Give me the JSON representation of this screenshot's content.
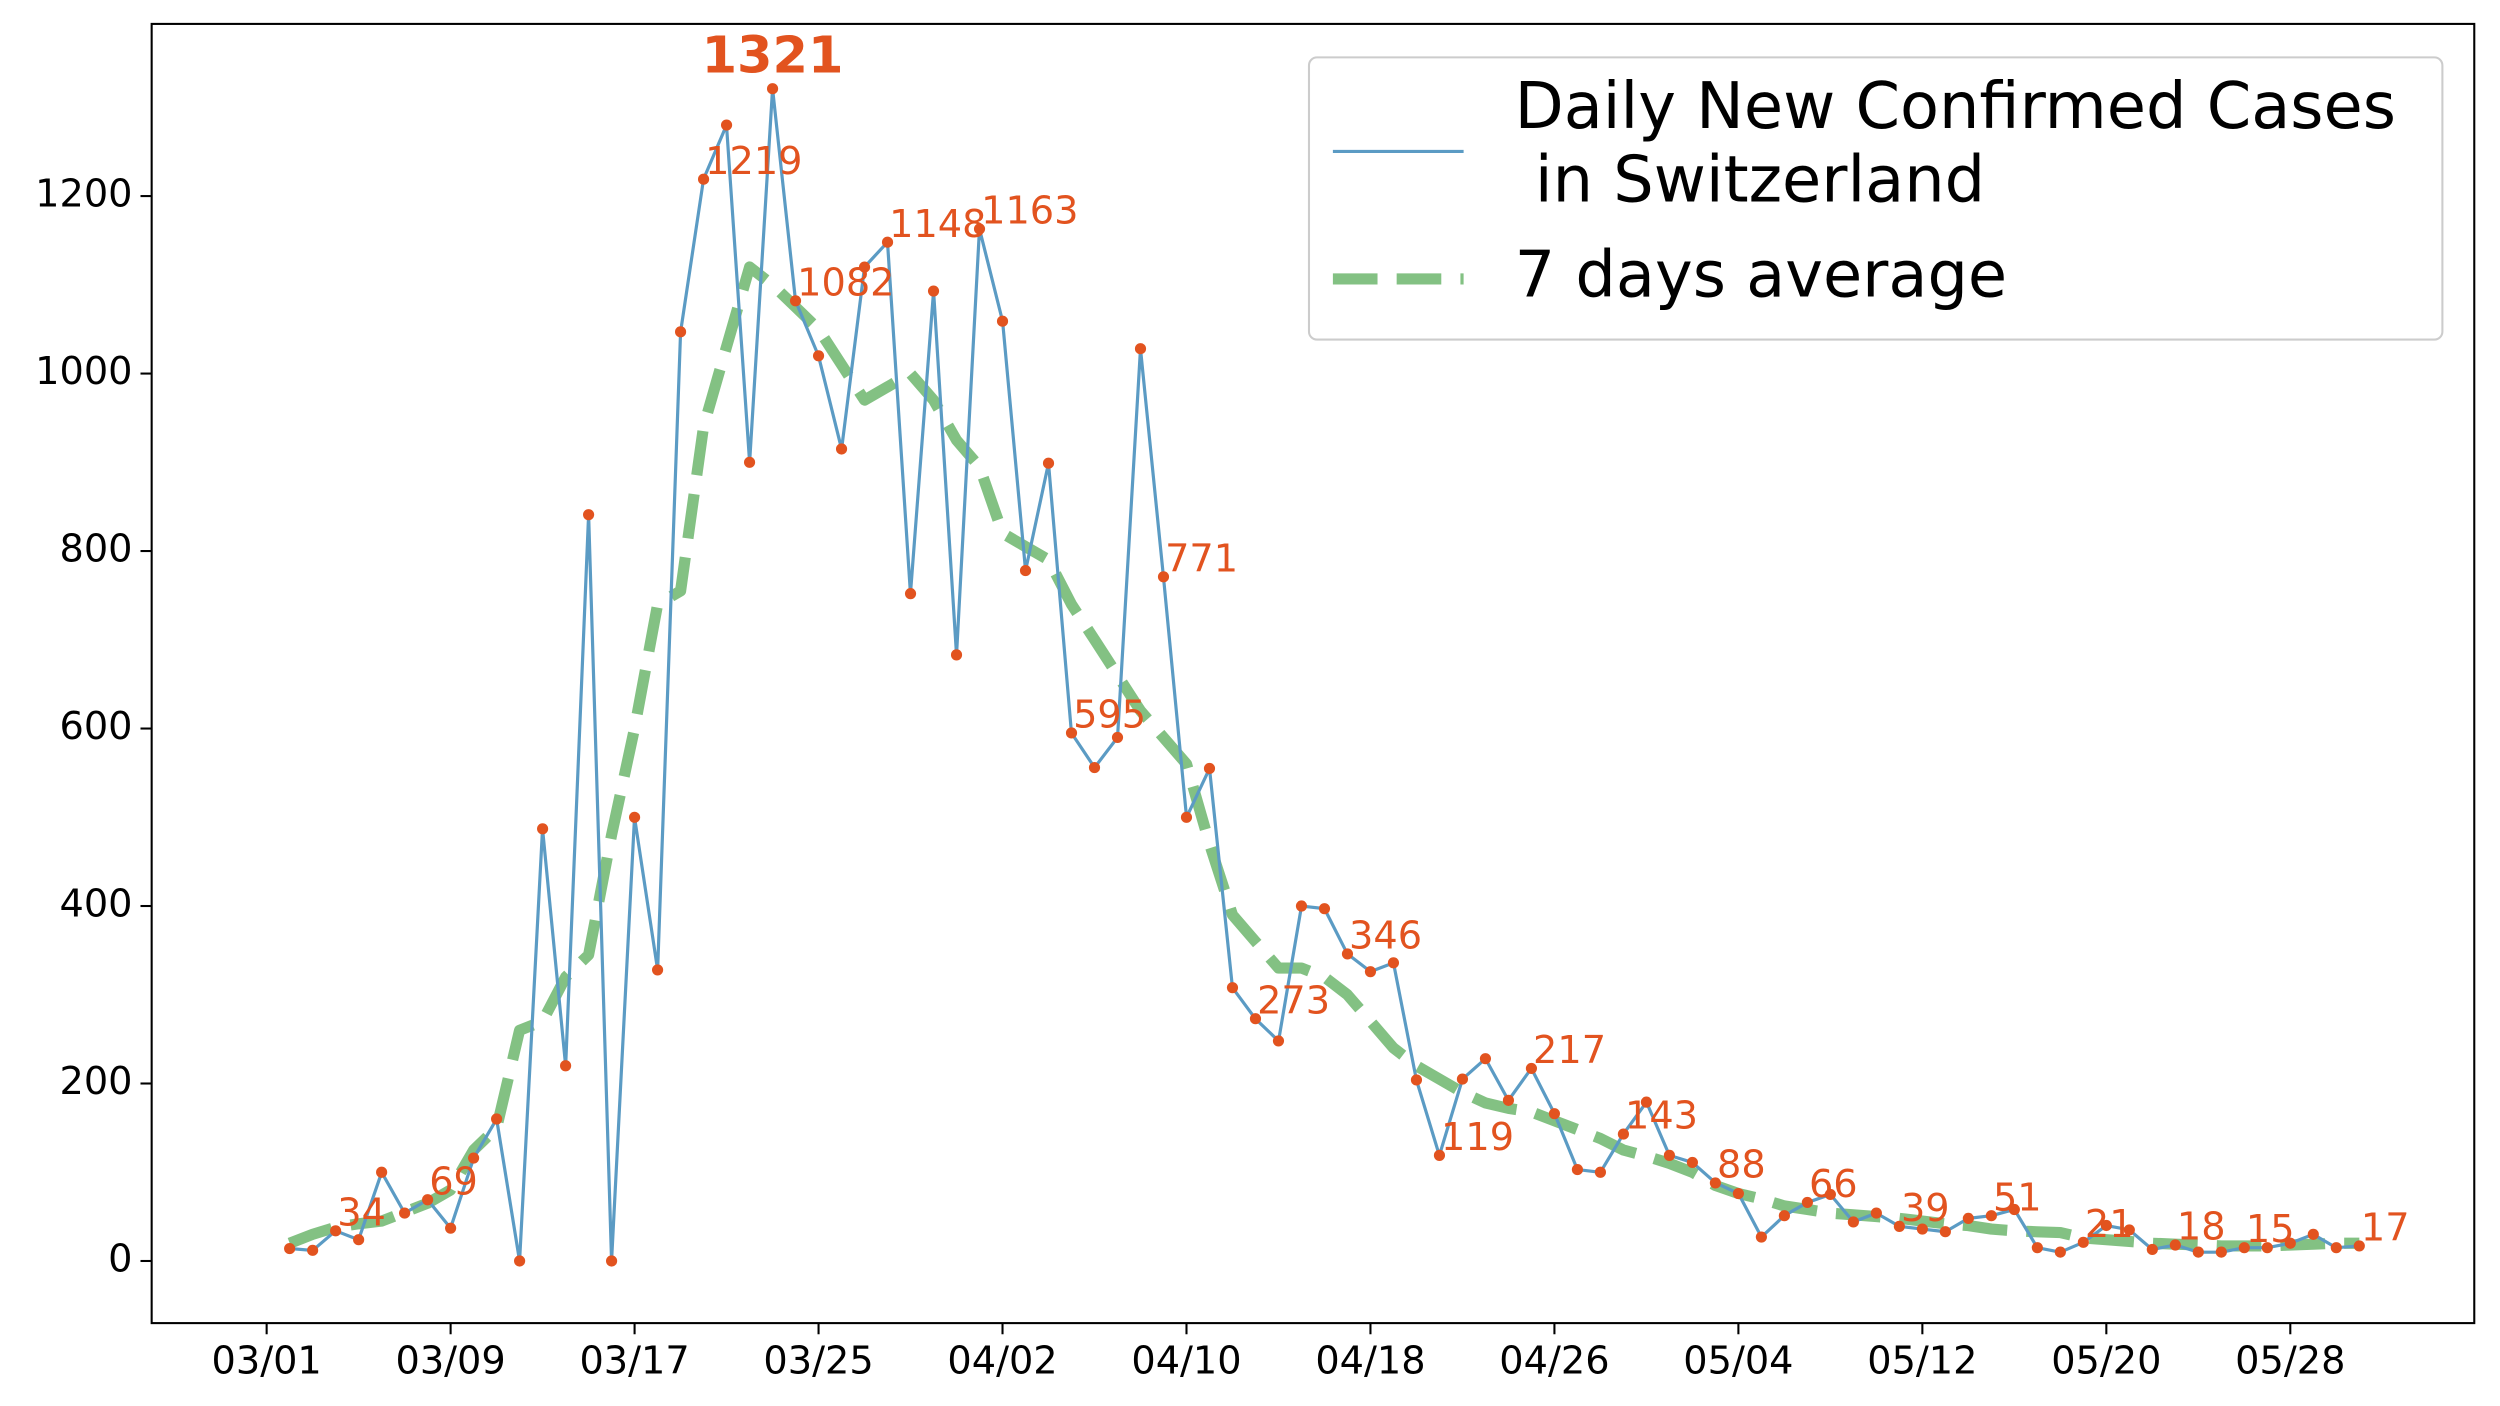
{
  "chart_data": {
    "type": "line",
    "x": [
      "03/02",
      "03/03",
      "03/04",
      "03/05",
      "03/06",
      "03/07",
      "03/08",
      "03/09",
      "03/10",
      "03/11",
      "03/12",
      "03/13",
      "03/14",
      "03/15",
      "03/16",
      "03/17",
      "03/18",
      "03/19",
      "03/20",
      "03/21",
      "03/22",
      "03/23",
      "03/24",
      "03/25",
      "03/26",
      "03/27",
      "03/28",
      "03/29",
      "03/30",
      "03/31",
      "04/01",
      "04/02",
      "04/03",
      "04/04",
      "04/05",
      "04/06",
      "04/07",
      "04/08",
      "04/09",
      "04/10",
      "04/11",
      "04/12",
      "04/13",
      "04/14",
      "04/15",
      "04/16",
      "04/17",
      "04/18",
      "04/19",
      "04/20",
      "04/21",
      "04/22",
      "04/23",
      "04/24",
      "04/25",
      "04/26",
      "04/27",
      "04/28",
      "04/29",
      "04/30",
      "05/01",
      "05/02",
      "05/03",
      "05/04",
      "05/05",
      "05/06",
      "05/07",
      "05/08",
      "05/09",
      "05/10",
      "05/11",
      "05/12",
      "05/13",
      "05/14",
      "05/15",
      "05/16",
      "05/17",
      "05/18",
      "05/19",
      "05/20",
      "05/21",
      "05/22",
      "05/23",
      "05/24",
      "05/25",
      "05/26",
      "05/27",
      "05/28",
      "05/29",
      "05/30",
      "05/31"
    ],
    "series": [
      {
        "name": "Daily New Confirmed Cases\n in Switzerland",
        "color": "#5b9bc4",
        "marker_color": "#e2531f",
        "line_style": "solid",
        "values": [
          14,
          12,
          34,
          24,
          100,
          54,
          69,
          37,
          116,
          160,
          0,
          487,
          220,
          841,
          0,
          500,
          328,
          1047,
          1219,
          1280,
          900,
          1321,
          1082,
          1020,
          915,
          1120,
          1148,
          752,
          1093,
          683,
          1163,
          1059,
          778,
          899,
          595,
          556,
          590,
          1028,
          771,
          500,
          555,
          308,
          273,
          248,
          400,
          397,
          346,
          326,
          336,
          204,
          119,
          205,
          228,
          181,
          217,
          166,
          103,
          100,
          143,
          179,
          119,
          111,
          88,
          76,
          27,
          51,
          66,
          75,
          44,
          54,
          39,
          36,
          33,
          48,
          51,
          58,
          15,
          10,
          21,
          40,
          35,
          13,
          18,
          10,
          10,
          15,
          15,
          20,
          30,
          15,
          17
        ],
        "labeled": [
          "03/04",
          "03/08",
          "03/20",
          "03/24",
          "03/28",
          "04/01",
          "04/05",
          "04/09",
          "04/13",
          "04/17",
          "04/21",
          "04/25",
          "04/29",
          "05/03",
          "05/07",
          "05/11",
          "05/15",
          "05/19",
          "05/23",
          "05/26",
          "05/31"
        ],
        "highlighted": "03/23"
      },
      {
        "name": "7 days average",
        "color": "#4ea64e",
        "line_style": "dashed",
        "values": [
          20,
          30,
          38,
          42,
          45,
          55,
          65,
          80,
          125,
          150,
          260,
          270,
          320,
          345,
          480,
          600,
          740,
          755,
          940,
          1030,
          1120,
          1100,
          1075,
          1050,
          1010,
          970,
          985,
          1000,
          970,
          925,
          895,
          820,
          805,
          790,
          740,
          700,
          660,
          620,
          590,
          560,
          470,
          390,
          360,
          330,
          330,
          320,
          300,
          270,
          240,
          220,
          205,
          190,
          178,
          172,
          168,
          158,
          148,
          138,
          125,
          118,
          110,
          100,
          85,
          76,
          70,
          62,
          58,
          54,
          52,
          50,
          48,
          45,
          42,
          40,
          36,
          34,
          33,
          32,
          26,
          24,
          22,
          20,
          19,
          18,
          17,
          17,
          17,
          18,
          19,
          20,
          20
        ]
      }
    ],
    "xlim": [
      "02/25",
      "06/05"
    ],
    "xticks": [
      "03/01",
      "03/09",
      "03/17",
      "03/25",
      "04/02",
      "04/10",
      "04/18",
      "04/26",
      "05/04",
      "05/12",
      "05/20",
      "05/28"
    ],
    "ylim": [
      -70,
      1394
    ],
    "yticks": [
      0,
      200,
      400,
      600,
      800,
      1000,
      1200
    ],
    "grid": false,
    "legend": "upper right"
  }
}
